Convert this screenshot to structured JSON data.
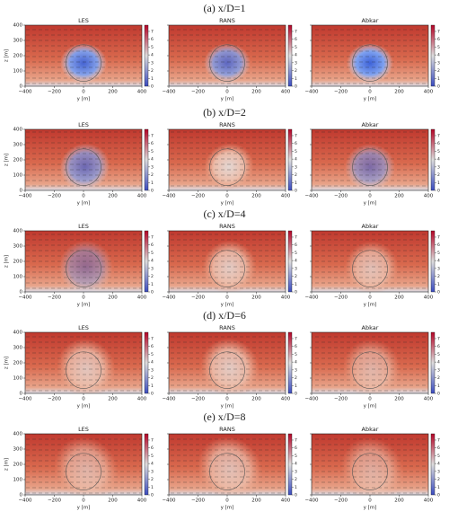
{
  "figure": {
    "rows": [
      {
        "caption": "(a) x/D=1",
        "panels": [
          {
            "title": "LES"
          },
          {
            "title": "RANS"
          },
          {
            "title": "Abkar"
          }
        ]
      },
      {
        "caption": "(b) x/D=2",
        "panels": [
          {
            "title": "LES"
          },
          {
            "title": "RANS"
          },
          {
            "title": "Abkar"
          }
        ]
      },
      {
        "caption": "(c) x/D=4",
        "panels": [
          {
            "title": "LES"
          },
          {
            "title": "RANS"
          },
          {
            "title": "Abkar"
          }
        ]
      },
      {
        "caption": "(d) x/D=6",
        "panels": [
          {
            "title": "LES"
          },
          {
            "title": "RANS"
          },
          {
            "title": "Abkar"
          }
        ]
      },
      {
        "caption": "(e) x/D=8",
        "panels": [
          {
            "title": "LES"
          },
          {
            "title": "RANS"
          },
          {
            "title": "Abkar"
          }
        ]
      }
    ],
    "xlabel": "y [m]",
    "ylabel": "z [m]",
    "xlim": [
      -400,
      400
    ],
    "xticks": [
      {
        "value": -400,
        "label": "−400"
      },
      {
        "value": -200,
        "label": "−200"
      },
      0,
      200,
      400
    ],
    "ylim": [
      0,
      400
    ],
    "yticks": [
      0,
      100,
      200,
      300,
      400
    ],
    "clim": [
      0,
      7.8
    ],
    "cticks": [
      0,
      1,
      2,
      3,
      4,
      5,
      6,
      7
    ]
  }
}
